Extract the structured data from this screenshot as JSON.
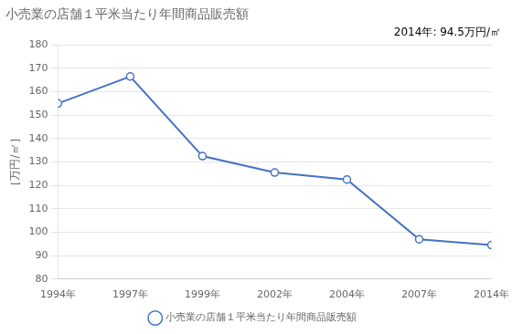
{
  "chart_data": {
    "type": "line",
    "title": "小売業の店舗１平米当たり年間商品販売額",
    "y_label": "［万円/㎡］",
    "annotation": "2014年: 94.5万円/㎡",
    "categories": [
      "1994年",
      "1997年",
      "1999年",
      "2002年",
      "2004年",
      "2007年",
      "2014年"
    ],
    "series": [
      {
        "name": "小売業の店舗１平米当たり年間商品販売額",
        "color": "#4472C4",
        "marker": "circle",
        "values": [
          155.0,
          166.5,
          132.5,
          125.5,
          122.5,
          97.0,
          94.5
        ]
      }
    ],
    "ylim": [
      80,
      180
    ],
    "yticks": [
      80,
      90,
      100,
      110,
      120,
      130,
      140,
      150,
      160,
      170,
      180
    ],
    "grid": true,
    "legend": "bottom"
  }
}
